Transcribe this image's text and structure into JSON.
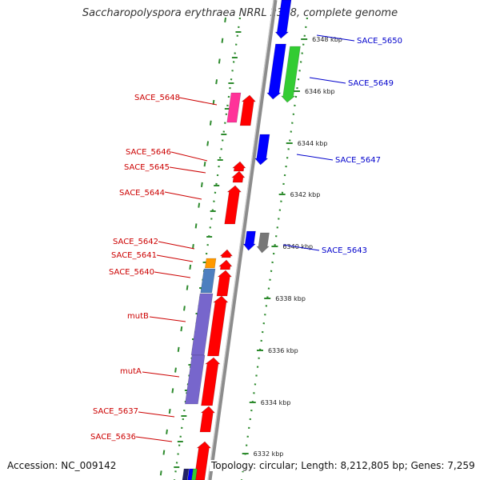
{
  "title": "Saccharopolyspora erythraea NRRL 2338, complete genome",
  "footer": {
    "accession": "Accession: NC_009142",
    "topology": "Topology: circular; Length: 8,212,805 bp; Genes: 7,259"
  },
  "colors": {
    "backbone": "#8c8c8c",
    "tick": "#2e8b2e",
    "forward_label": "#cc0000",
    "reverse_label": "#0000cc",
    "red_gene": "#ff0000",
    "blue_gene": "#0000ff",
    "green_gene": "#33cc33",
    "magenta_gene": "#ff3399",
    "gray_gene": "#777777",
    "orange_gene": "#ff9900",
    "steelblue_gene": "#4d7fbf",
    "purple_gene": "#7766cc"
  },
  "ticks": [
    {
      "label": "6348 kbp",
      "kbp": 6348
    },
    {
      "label": "6346 kbp",
      "kbp": 6346
    },
    {
      "label": "6344 kbp",
      "kbp": 6344
    },
    {
      "label": "6342 kbp",
      "kbp": 6342
    },
    {
      "label": "6340 kbp",
      "kbp": 6340
    },
    {
      "label": "6338 kbp",
      "kbp": 6338
    },
    {
      "label": "6336 kbp",
      "kbp": 6336
    },
    {
      "label": "6334 kbp",
      "kbp": 6334
    },
    {
      "label": "6332 kbp",
      "kbp": 6332
    }
  ],
  "genes_forward": [
    {
      "name": "SACE_5648",
      "color": "magenta_gene"
    },
    {
      "name": "SACE_5646",
      "color": "red_gene"
    },
    {
      "name": "SACE_5645",
      "color": "red_gene"
    },
    {
      "name": "SACE_5644",
      "color": "red_gene"
    },
    {
      "name": "SACE_5642",
      "color": "red_gene"
    },
    {
      "name": "SACE_5641",
      "color": "orange_gene"
    },
    {
      "name": "SACE_5640",
      "color": "steelblue_gene"
    },
    {
      "name": "mutB",
      "color": "purple_gene"
    },
    {
      "name": "mutA",
      "color": "purple_gene"
    },
    {
      "name": "SACE_5637",
      "color": "red_gene"
    },
    {
      "name": "SACE_5636",
      "color": "red_gene"
    }
  ],
  "genes_reverse": [
    {
      "name": "SACE_5650",
      "color": "blue_gene"
    },
    {
      "name": "SACE_5649",
      "color": "green_gene"
    },
    {
      "name": "SACE_5647",
      "color": "blue_gene"
    },
    {
      "name": "SACE_5643",
      "color": "gray_gene"
    }
  ]
}
